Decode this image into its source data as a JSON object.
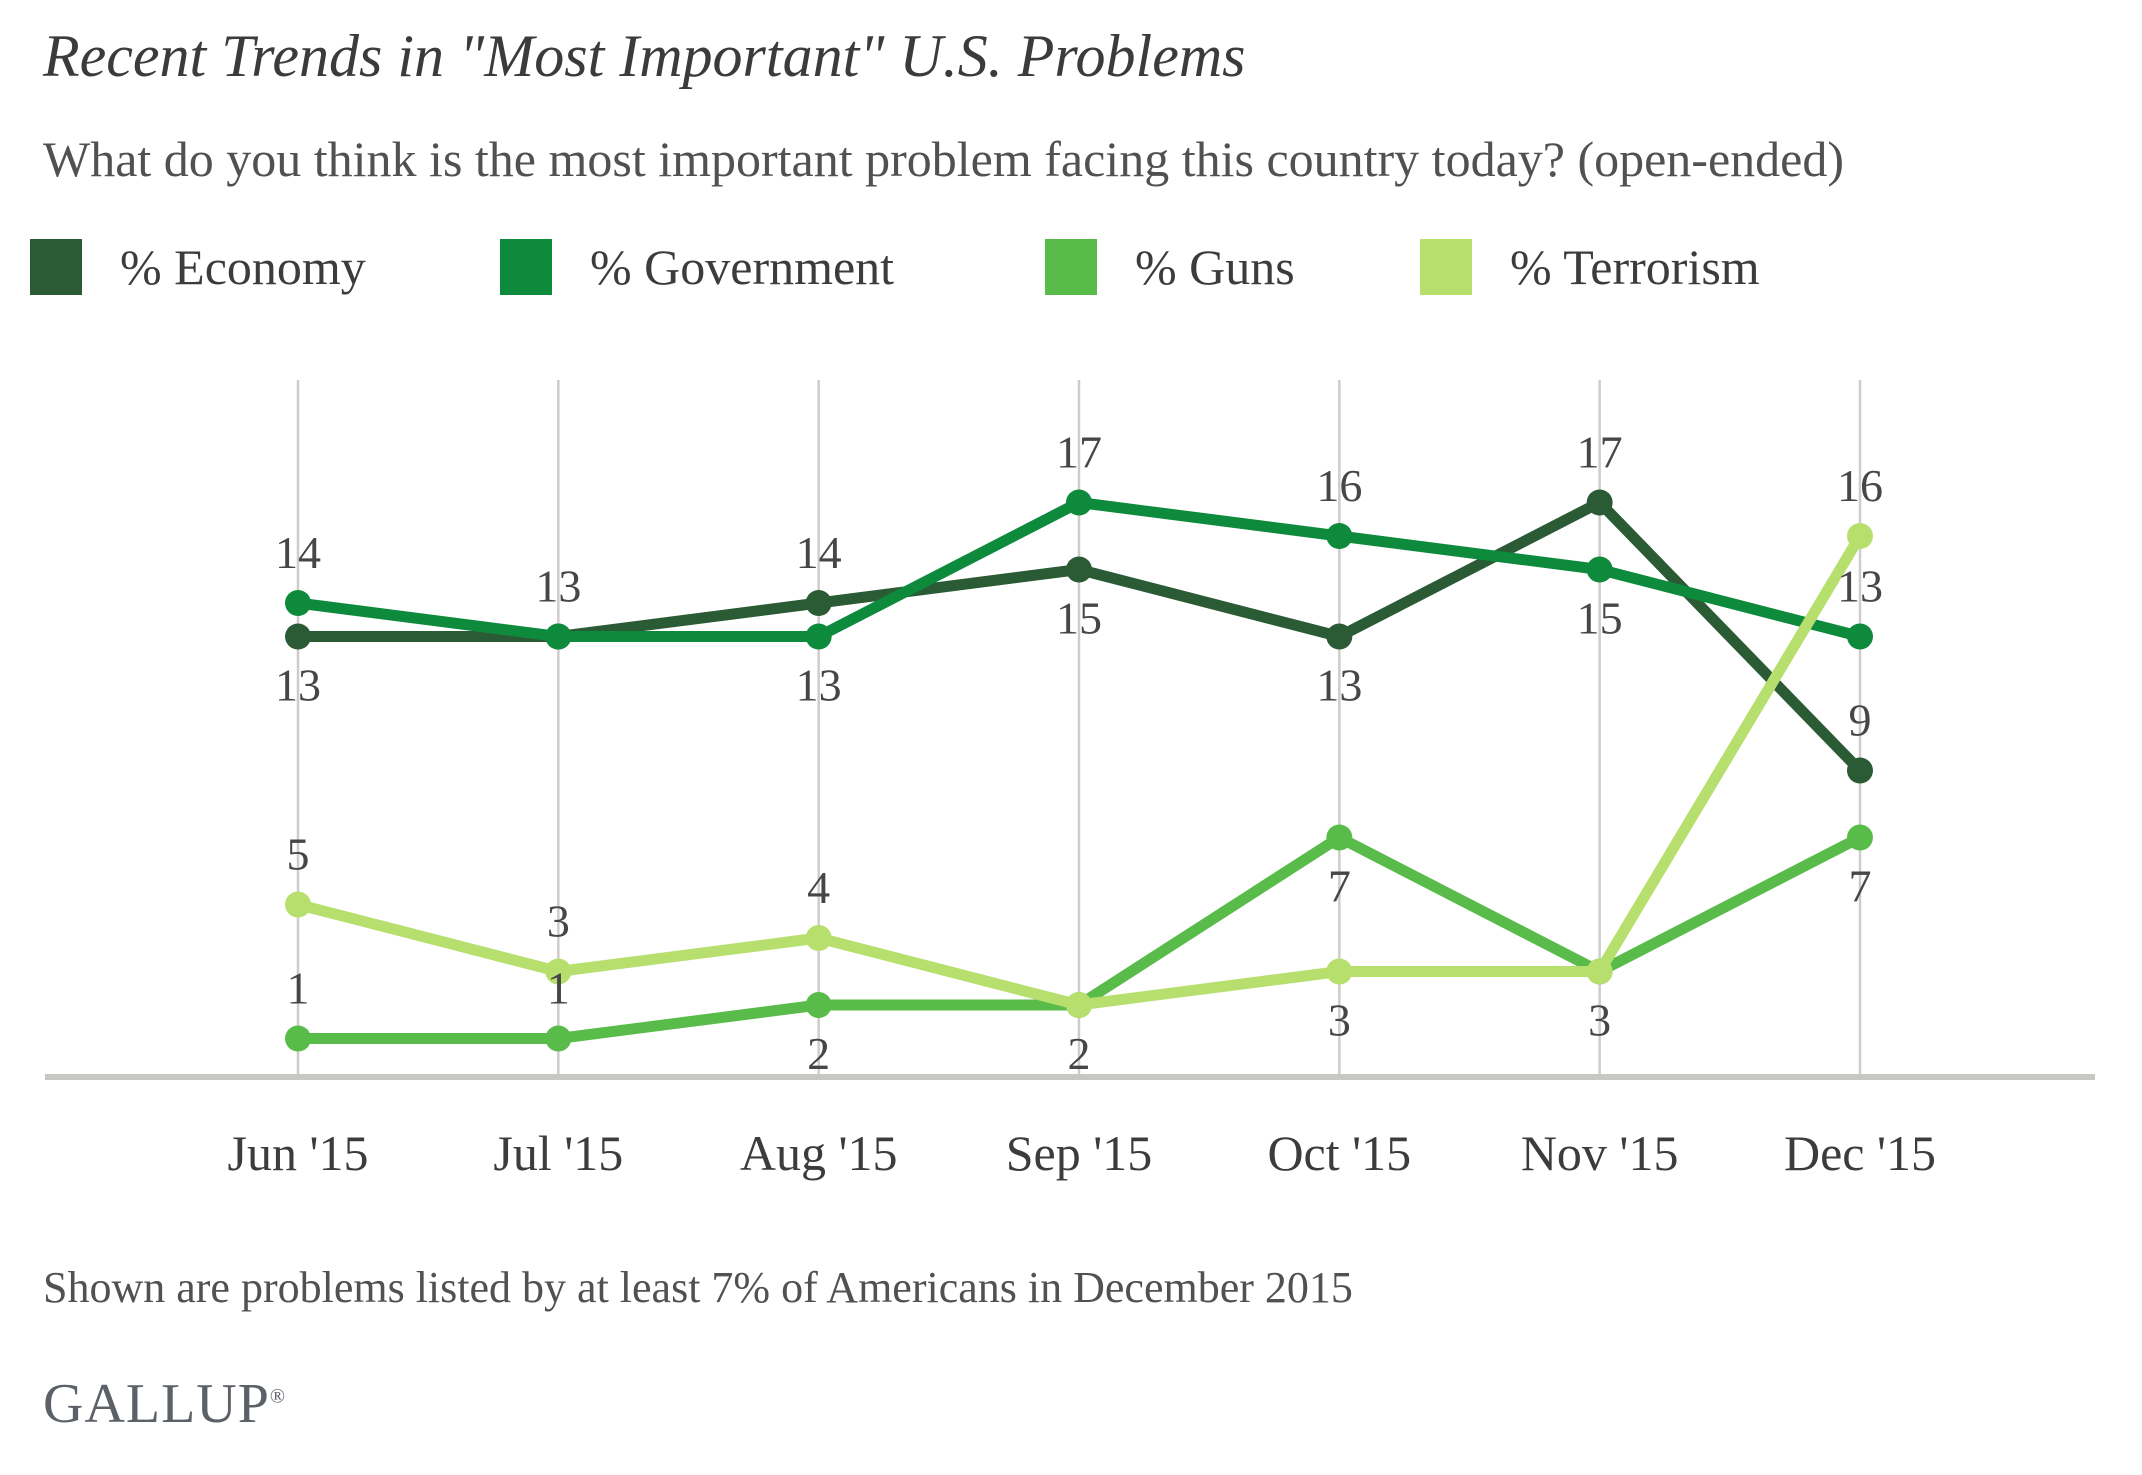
{
  "header": {
    "title": "Recent Trends in \"Most Important\" U.S. Problems",
    "subtitle": "What do you think is the most important problem facing this country today? (open-ended)"
  },
  "chart_data": {
    "type": "line",
    "title": "Recent Trends in \"Most Important\" U.S. Problems",
    "subtitle": "What do you think is the most important problem facing this country today? (open-ended)",
    "x_labels": [
      "Jun '15",
      "Jul '15",
      "Aug '15",
      "Sep '15",
      "Oct '15",
      "Nov '15",
      "Dec '15"
    ],
    "ylim": [
      0,
      20
    ],
    "grid": "vertical-gridlines-only",
    "legend_position": "top",
    "gridline_color": "#cfcdca",
    "axis_color": "#c9c7c4",
    "data_label_color": "#464646",
    "tick_label_color": "#3c3c3c",
    "series": [
      {
        "name": "% Economy",
        "color": "#2b5b34",
        "values": [
          13,
          13,
          14,
          15,
          13,
          17,
          9
        ],
        "point_labels": [
          {
            "text": "13",
            "pos": "below"
          },
          null,
          {
            "text": "14",
            "pos": "above"
          },
          {
            "text": "15",
            "pos": "below"
          },
          {
            "text": "13",
            "pos": "below"
          },
          {
            "text": "17",
            "pos": "above"
          },
          {
            "text": "9",
            "pos": "above"
          }
        ]
      },
      {
        "name": "% Government",
        "color": "#0e8a3c",
        "values": [
          14,
          13,
          13,
          17,
          16,
          15,
          13
        ],
        "point_labels": [
          {
            "text": "14",
            "pos": "above"
          },
          {
            "text": "13",
            "pos": "above"
          },
          {
            "text": "13",
            "pos": "below"
          },
          {
            "text": "17",
            "pos": "above"
          },
          {
            "text": "16",
            "pos": "above"
          },
          {
            "text": "15",
            "pos": "below"
          },
          {
            "text": "13",
            "pos": "above"
          }
        ]
      },
      {
        "name": "% Guns",
        "color": "#59bc4a",
        "values": [
          1,
          1,
          2,
          2,
          7,
          3,
          7
        ],
        "point_labels": [
          {
            "text": "1",
            "pos": "above"
          },
          {
            "text": "1",
            "pos": "above"
          },
          {
            "text": "2",
            "pos": "below"
          },
          null,
          {
            "text": "7",
            "pos": "below"
          },
          null,
          {
            "text": "7",
            "pos": "below"
          }
        ]
      },
      {
        "name": "% Terrorism",
        "color": "#b7df6e",
        "values": [
          5,
          3,
          4,
          2,
          3,
          3,
          16
        ],
        "point_labels": [
          {
            "text": "5",
            "pos": "above"
          },
          {
            "text": "3",
            "pos": "above"
          },
          {
            "text": "4",
            "pos": "above"
          },
          {
            "text": "2",
            "pos": "below"
          },
          {
            "text": "3",
            "pos": "below"
          },
          {
            "text": "3",
            "pos": "below"
          },
          {
            "text": "16",
            "pos": "above"
          }
        ]
      }
    ]
  },
  "footer": {
    "note": "Shown are problems listed by at least 7% of Americans in December 2015",
    "logo": "GALLUP",
    "logo_mark": "®"
  }
}
